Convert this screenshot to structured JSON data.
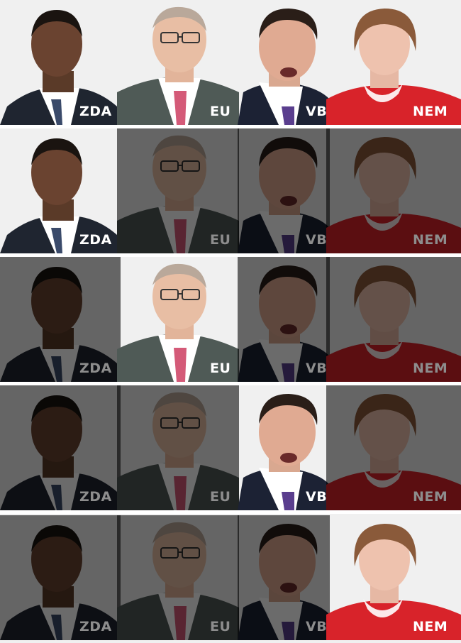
{
  "labels": {
    "zda": "ZDA",
    "eu": "EU",
    "vb": "VB",
    "nem": "NEM"
  },
  "rows": [
    {
      "highlighted": [
        "zda",
        "eu",
        "vb",
        "nem"
      ]
    },
    {
      "highlighted": [
        "zda"
      ]
    },
    {
      "highlighted": [
        "eu"
      ]
    },
    {
      "highlighted": [
        "vb"
      ]
    },
    {
      "highlighted": [
        "nem"
      ]
    }
  ],
  "colors": {
    "background": "#f0f0f0",
    "label_active": "#ffffff",
    "label_inactive": "#8d8d8d",
    "suit_dark": "#1f2530",
    "suit_grey": "#4f5a56",
    "jacket_red": "#d8232a",
    "tie_pink": "#d45a78",
    "tie_purple": "#5a3e8e"
  }
}
